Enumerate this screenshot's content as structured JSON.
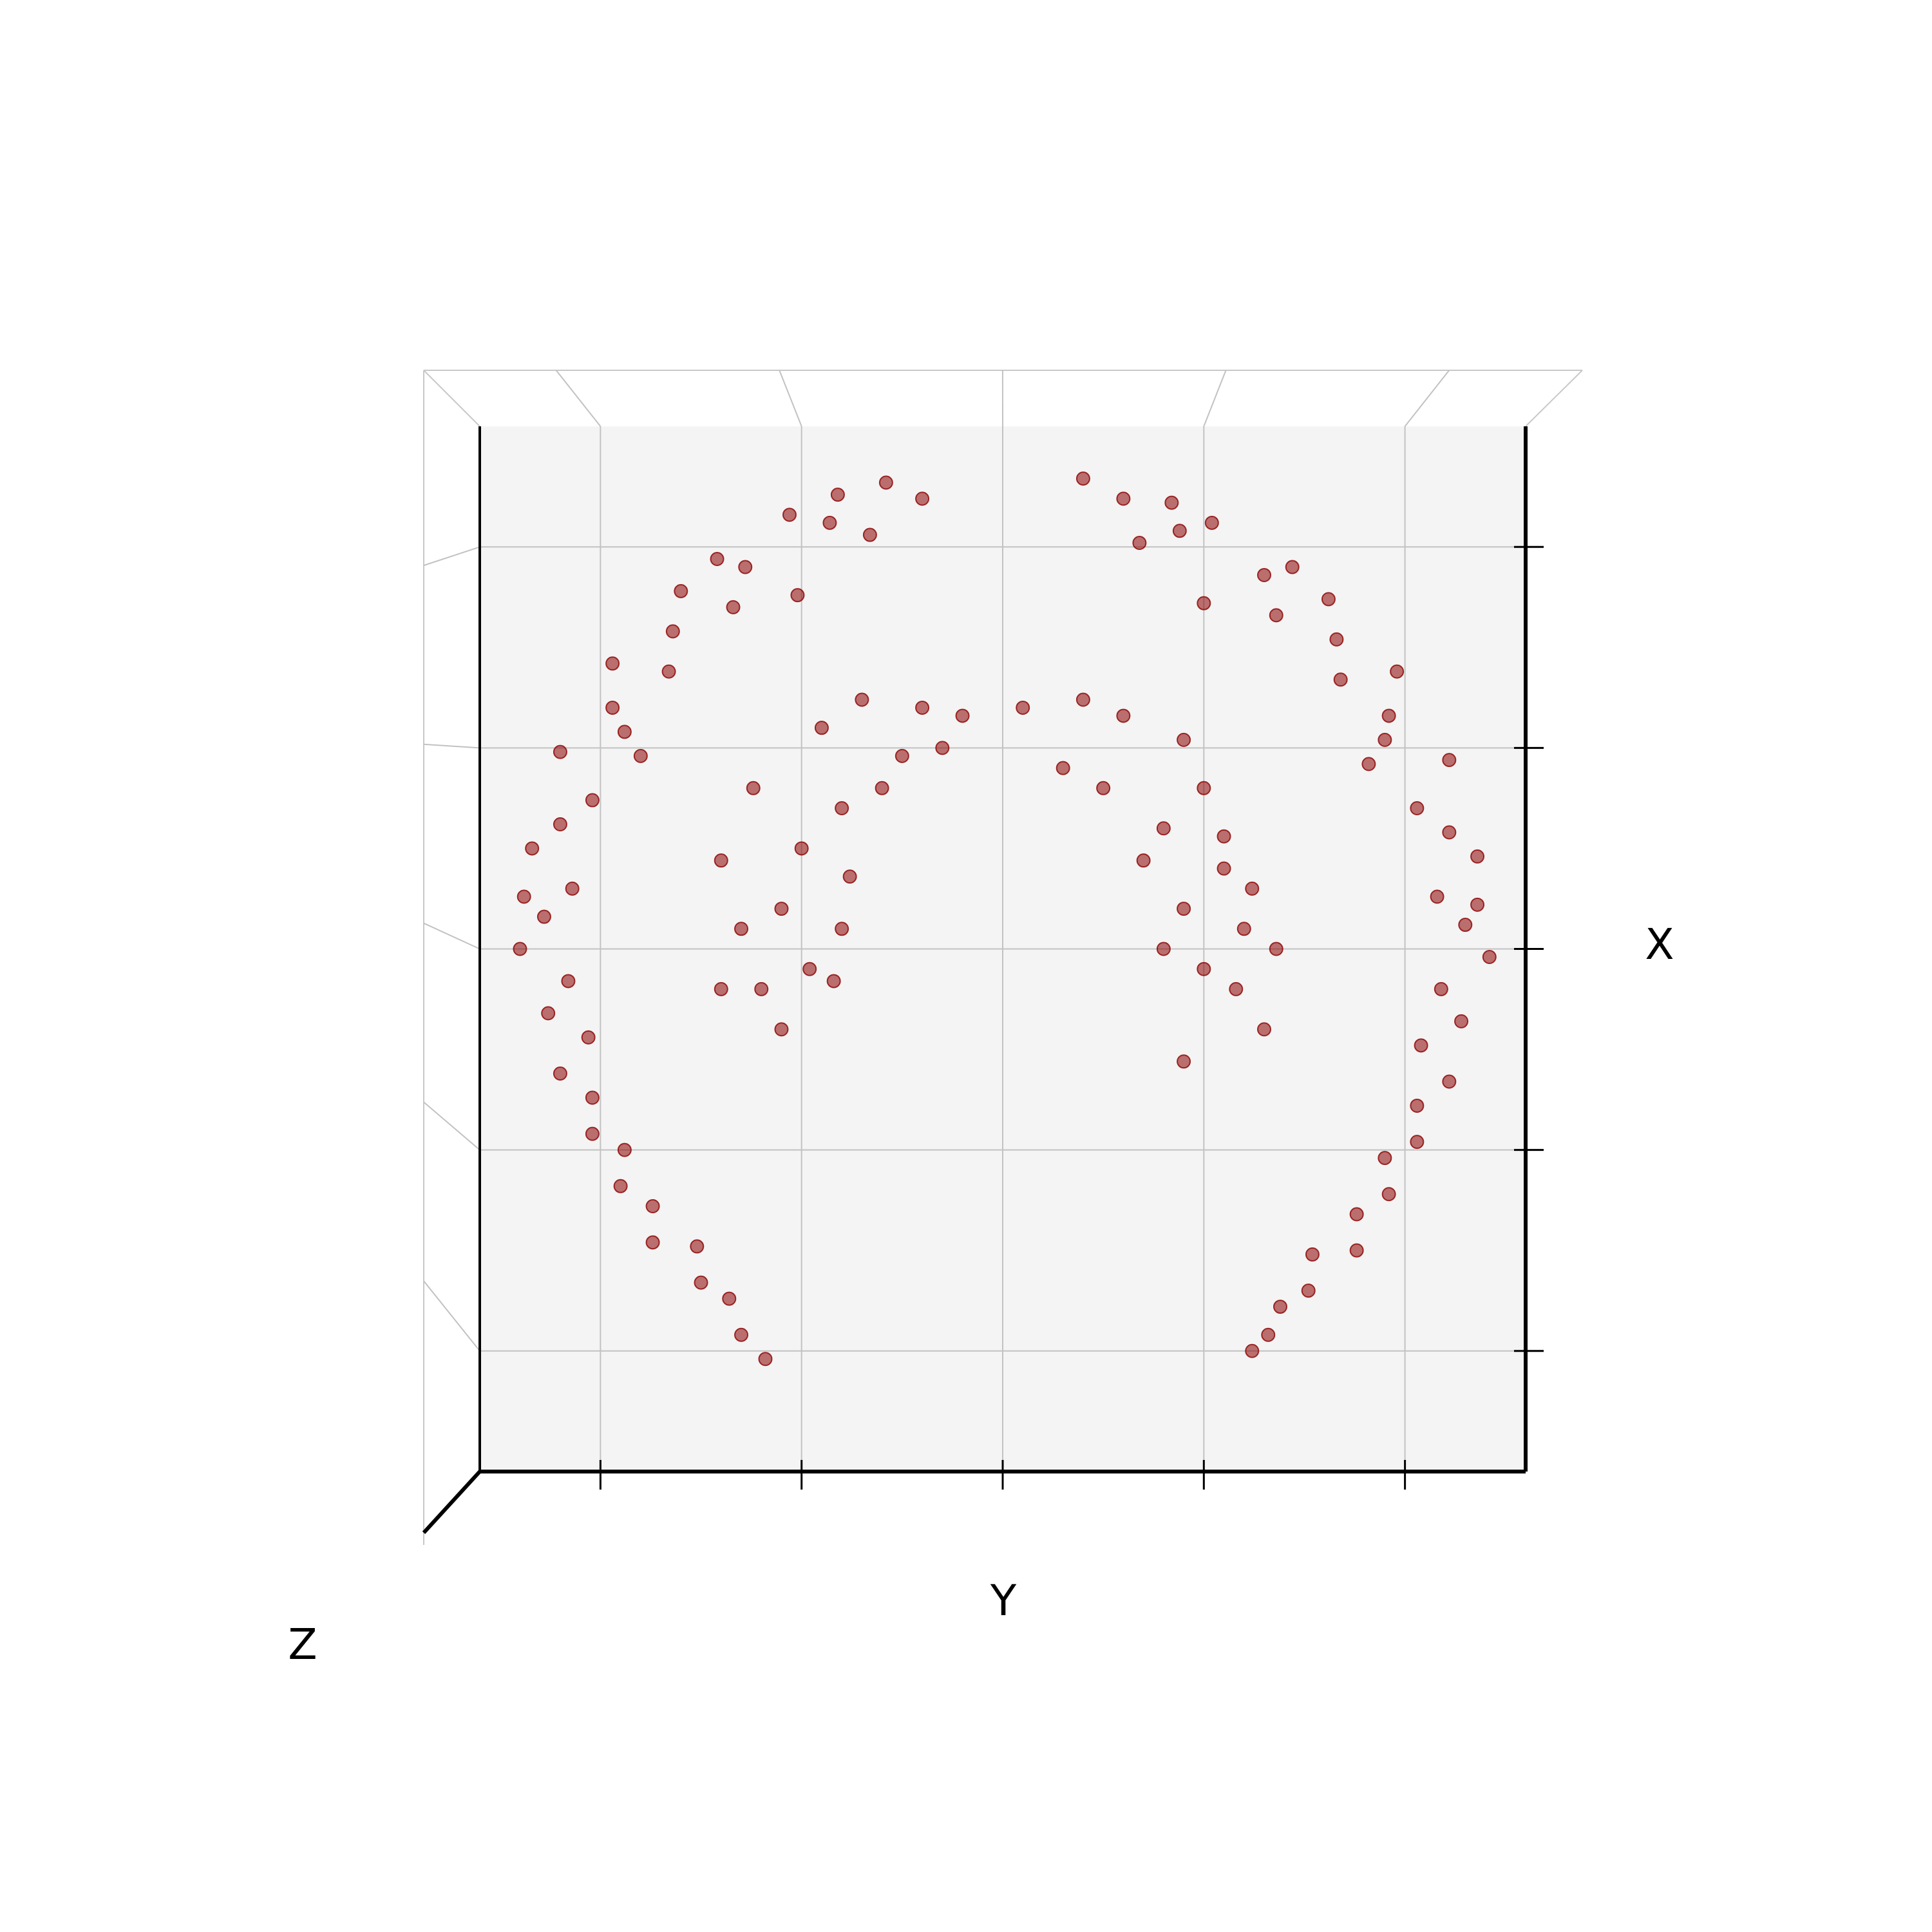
{
  "chart_data": {
    "type": "scatter",
    "xlabel": "Y",
    "ylabel": "X",
    "zlabel": "Z",
    "color": "#8b0000",
    "grid": true,
    "xlim": [
      -1.3,
      1.3
    ],
    "ylim": [
      -1.3,
      1.3
    ],
    "xticks": [
      -1,
      -0.5,
      0,
      0.5,
      1
    ],
    "yticks": [
      -1,
      -0.5,
      0,
      0.5,
      1
    ],
    "x": [
      -0.2,
      -0.29,
      -0.33,
      -0.43,
      -0.53,
      -0.51,
      -0.64,
      -0.67,
      -0.8,
      -0.82,
      -0.83,
      -0.97,
      -0.97,
      -0.9,
      -1.1,
      -1.02,
      -1.1,
      -1.17,
      -1.07,
      -1.14,
      -1.2,
      -1.08,
      -1.13,
      -1.03,
      -1.1,
      -1.02,
      -1.02,
      -0.94,
      -0.95,
      -0.87,
      -0.87,
      -0.76,
      -0.75,
      -0.68,
      -0.65,
      -0.59,
      -0.41,
      -0.71,
      -0.94,
      -1.19,
      0.2,
      0.3,
      0.34,
      0.44,
      0.52,
      0.5,
      0.65,
      0.68,
      0.81,
      0.83,
      0.84,
      0.98,
      0.96,
      0.91,
      1.11,
      1.03,
      1.11,
      1.18,
      1.08,
      1.15,
      1.21,
      1.09,
      1.14,
      1.04,
      1.11,
      1.03,
      1.03,
      0.95,
      0.96,
      0.88,
      0.88,
      0.77,
      0.76,
      0.69,
      0.66,
      0.62,
      0.42,
      0.72,
      0.95,
      1.18,
      -0.7,
      -0.55,
      -0.62,
      -0.45,
      -0.35,
      -0.2,
      -0.1,
      -0.25,
      -0.4,
      -0.5,
      -0.48,
      -0.6,
      -0.55,
      -0.4,
      -0.42,
      -0.3,
      -0.15,
      -0.38,
      -0.65,
      -0.7,
      0.05,
      0.2,
      0.3,
      0.45,
      0.5,
      0.25,
      0.4,
      0.55,
      0.62,
      0.45,
      0.6,
      0.5,
      0.68,
      0.58,
      0.65,
      0.45,
      0.35,
      0.15,
      0.55,
      0.4
    ],
    "values": [
      1.12,
      1.16,
      1.03,
      1.06,
      1.08,
      0.88,
      0.95,
      0.85,
      0.89,
      0.79,
      0.69,
      0.71,
      0.6,
      0.48,
      0.49,
      0.37,
      0.31,
      0.25,
      0.15,
      0.08,
      0.0,
      -0.08,
      -0.16,
      -0.22,
      -0.31,
      -0.37,
      -0.46,
      -0.5,
      -0.59,
      -0.64,
      -0.73,
      -0.74,
      -0.83,
      -0.87,
      -0.96,
      -1.02,
      1.13,
      0.97,
      0.54,
      0.13,
      1.17,
      1.12,
      1.01,
      1.04,
      1.06,
      0.86,
      0.93,
      0.83,
      0.87,
      0.77,
      0.67,
      0.69,
      0.58,
      0.46,
      0.47,
      0.35,
      0.29,
      0.23,
      0.13,
      0.06,
      -0.02,
      -0.1,
      -0.18,
      -0.24,
      -0.33,
      -0.39,
      -0.48,
      -0.52,
      -0.61,
      -0.66,
      -0.75,
      -0.76,
      -0.85,
      -0.89,
      -0.96,
      -1.0,
      1.11,
      0.95,
      0.52,
      0.11,
      0.22,
      0.1,
      0.4,
      0.55,
      0.62,
      0.6,
      0.58,
      0.48,
      0.35,
      0.25,
      -0.05,
      -0.1,
      -0.2,
      0.05,
      -0.08,
      0.4,
      0.5,
      0.18,
      0.05,
      -0.1,
      0.6,
      0.62,
      0.58,
      0.52,
      0.4,
      0.4,
      0.3,
      0.2,
      0.15,
      0.1,
      0.05,
      -0.05,
      0.0,
      -0.1,
      -0.2,
      -0.28,
      0.22,
      0.45,
      0.28,
      0.0
    ]
  }
}
